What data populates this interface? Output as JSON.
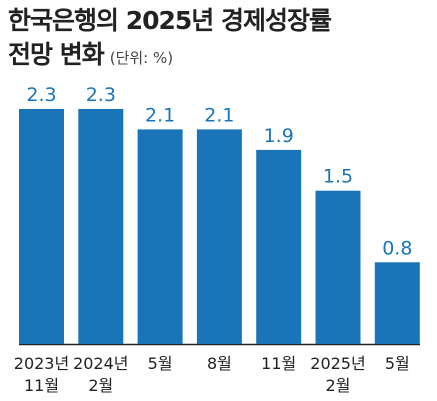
{
  "title": {
    "line1": "한국은행의 2025년 경제성장률",
    "line2": "전망 변화",
    "unit": "(단위: %)"
  },
  "colors": {
    "bar": "#1a75b8",
    "axis": "#222222"
  },
  "chart_data": {
    "type": "bar",
    "title": "한국은행의 2025년 경제성장률 전망 변화",
    "unit": "(단위: %)",
    "categories": [
      [
        "2023년",
        "11월"
      ],
      [
        "2024년",
        "2월"
      ],
      [
        "5월"
      ],
      [
        "8월"
      ],
      [
        "11월"
      ],
      [
        "2025년",
        "2월"
      ],
      [
        "5월"
      ]
    ],
    "values": [
      2.3,
      2.3,
      2.1,
      2.1,
      1.9,
      1.5,
      0.8
    ],
    "value_labels": [
      "2.3",
      "2.3",
      "2.1",
      "2.1",
      "1.9",
      "1.5",
      "0.8"
    ],
    "ylim": [
      0,
      2.3
    ],
    "grid": false,
    "legend": "none"
  }
}
